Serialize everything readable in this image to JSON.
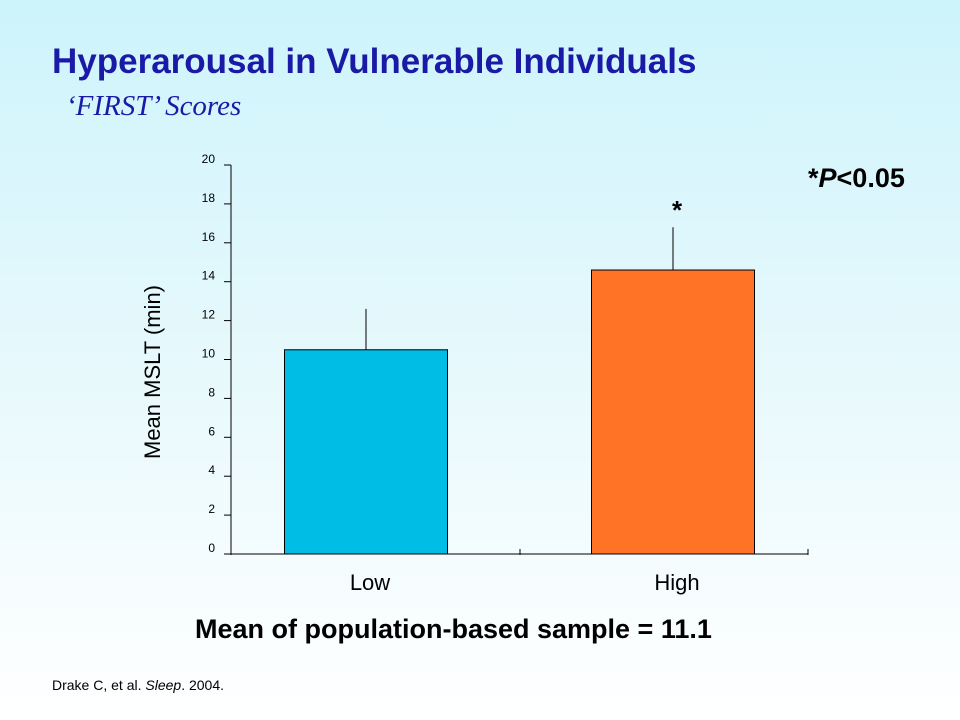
{
  "title": "Hyperarousal in Vulnerable Individuals",
  "subtitle": "‘FIRST’ Scores",
  "significance": {
    "prefix": "*",
    "p_symbol": "P",
    "suffix": "<0.05"
  },
  "footer_note": "Mean of population-based sample = 11.1",
  "citation": {
    "authors": "Drake C, et al. ",
    "journal": "Sleep",
    "year": ". 2004."
  },
  "chart_data": {
    "type": "bar",
    "categories": [
      "Low",
      "High"
    ],
    "values": [
      10.5,
      14.6
    ],
    "error_upper": [
      12.6,
      16.8
    ],
    "bar_colors": [
      "#00bde6",
      "#ff7326"
    ],
    "annotations": [
      "",
      "*"
    ],
    "title": "",
    "xlabel": "",
    "ylabel": "Mean MSLT (min)",
    "ylim": [
      0,
      20
    ],
    "yticks": [
      0,
      2,
      4,
      6,
      8,
      10,
      12,
      14,
      16,
      18,
      20
    ],
    "grid": false,
    "legend": "none"
  }
}
